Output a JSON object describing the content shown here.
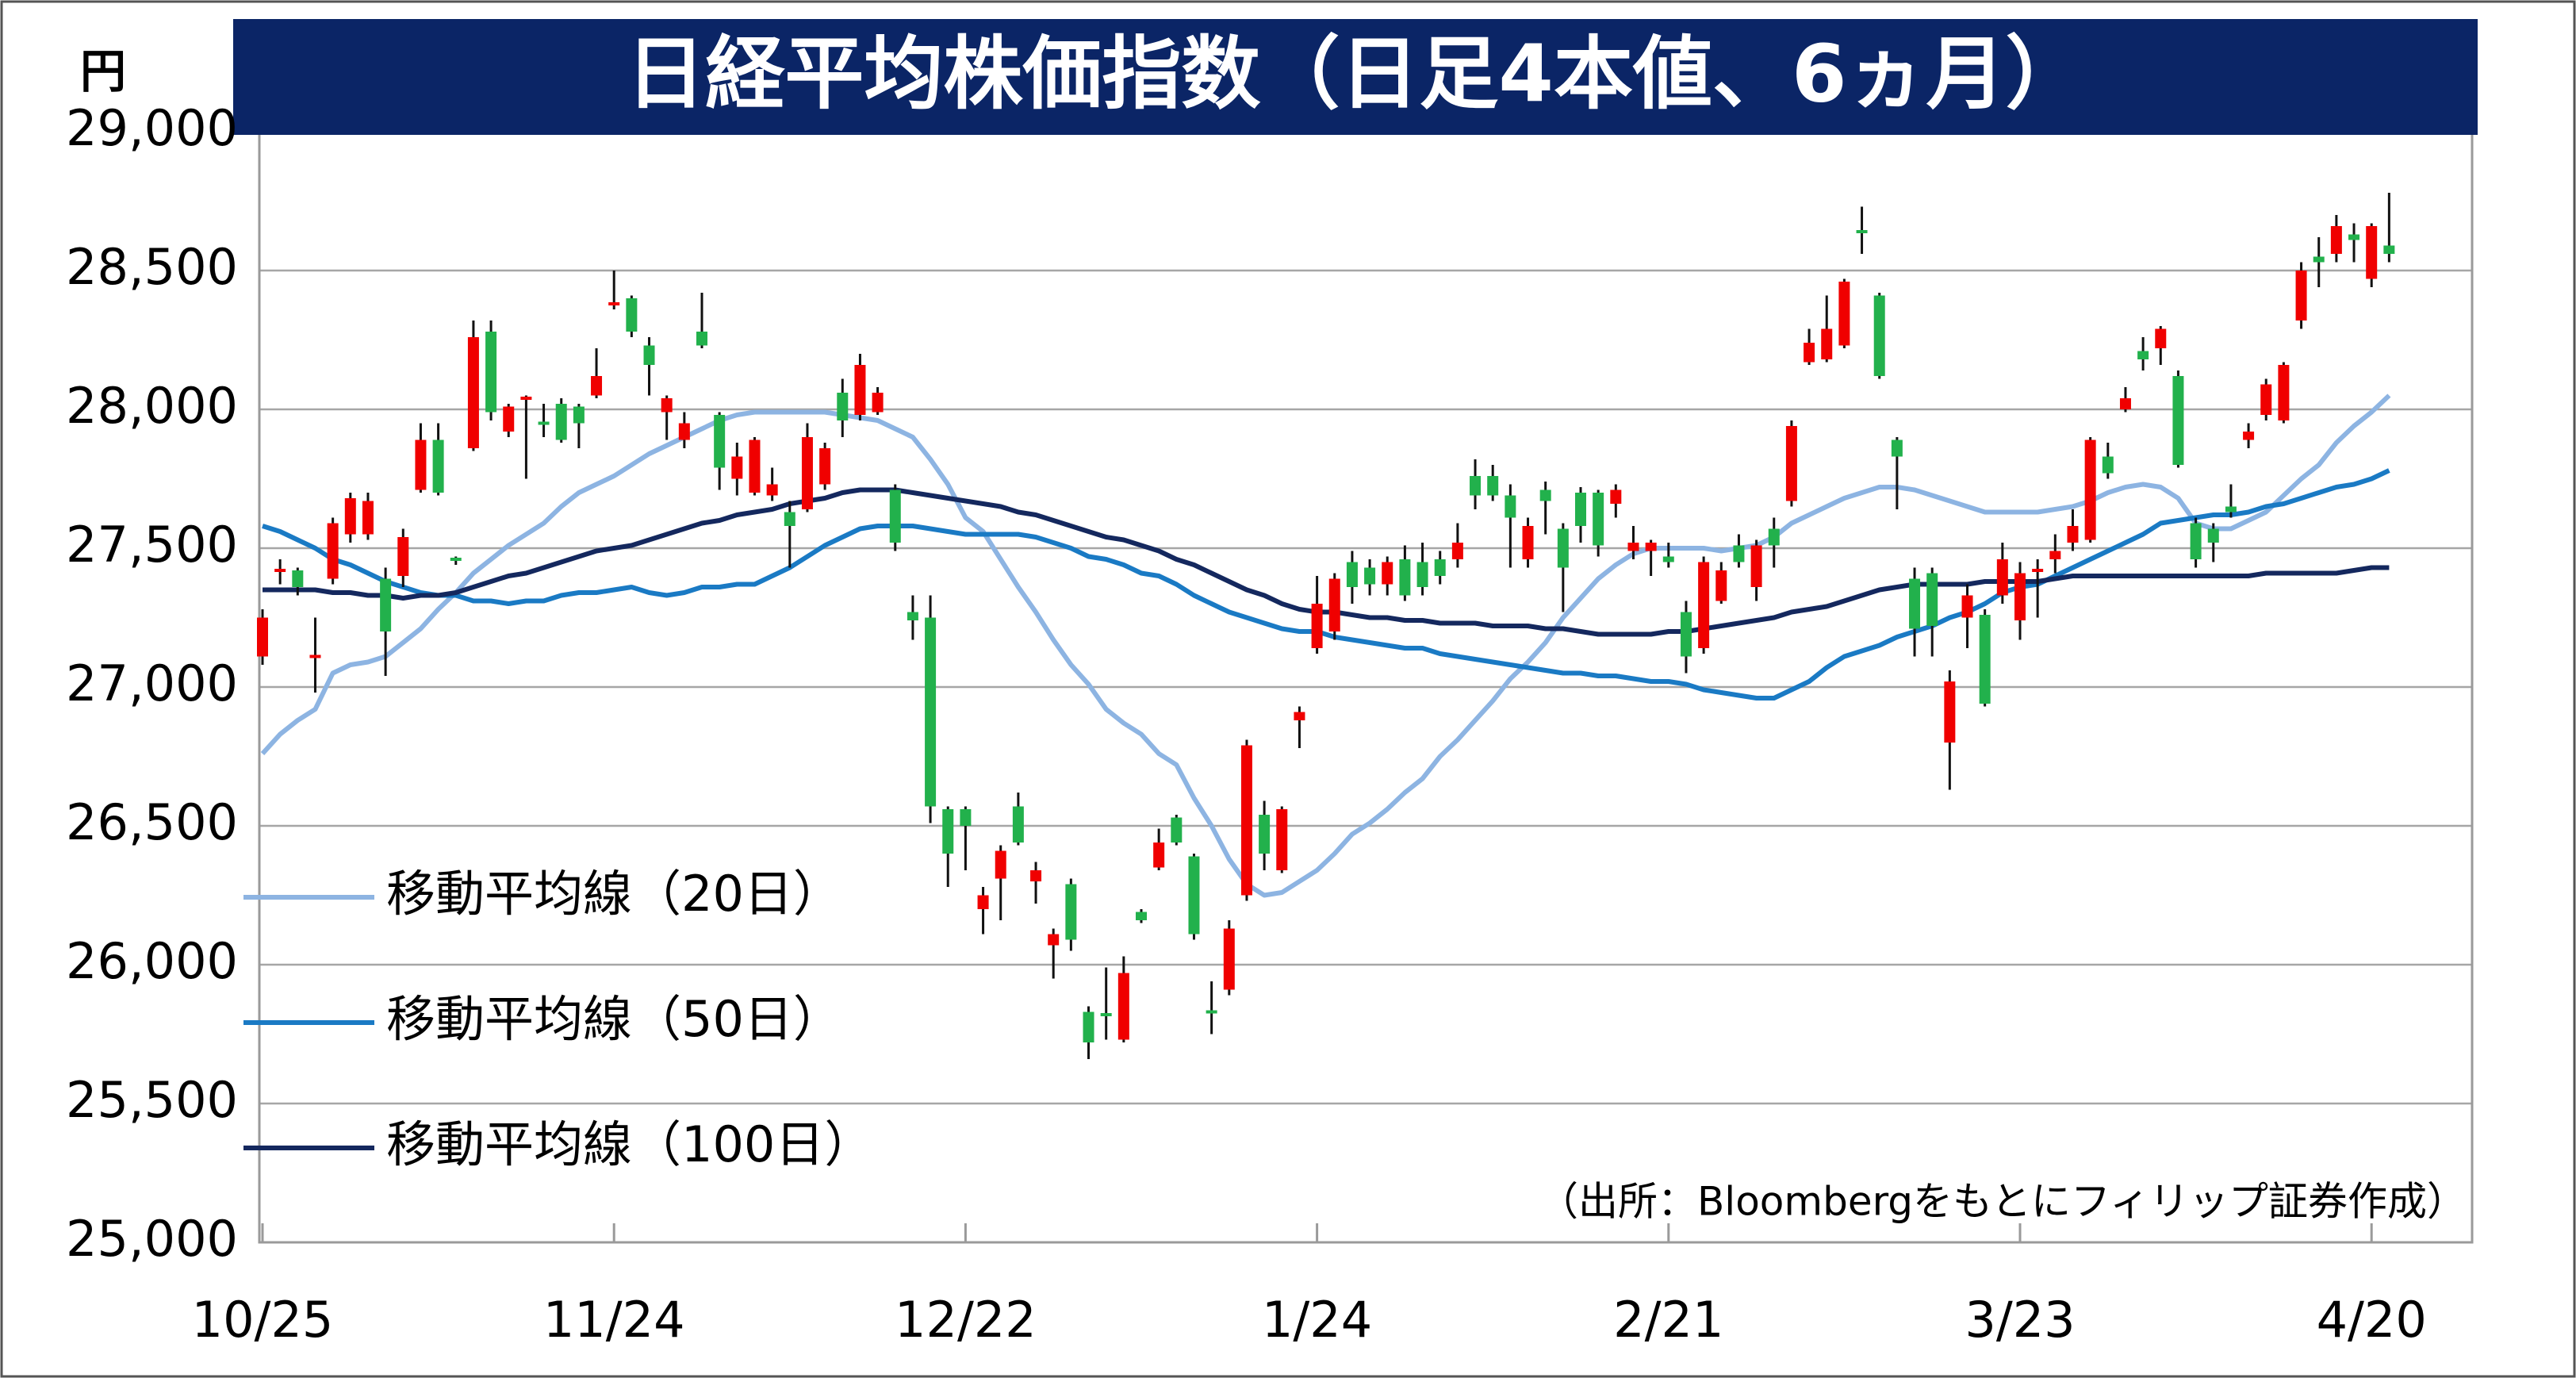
{
  "chart_data": {
    "type": "candlestick",
    "title": "日経平均株価指数（日足4本値、6ヵ月）",
    "y_unit": "円",
    "source": "（出所：Bloombergをもとにフィリップ証券作成）",
    "categories": [
      "10/25",
      null,
      null,
      null,
      null,
      null,
      null,
      null,
      null,
      null,
      null,
      null,
      null,
      null,
      null,
      null,
      null,
      null,
      null,
      null,
      "11/24",
      null,
      null,
      null,
      null,
      null,
      null,
      null,
      null,
      null,
      null,
      null,
      null,
      null,
      null,
      null,
      null,
      null,
      null,
      null,
      "12/22",
      null,
      null,
      null,
      null,
      null,
      null,
      null,
      null,
      null,
      null,
      null,
      null,
      null,
      null,
      null,
      null,
      null,
      null,
      null,
      "1/24",
      null,
      null,
      null,
      null,
      null,
      null,
      null,
      null,
      null,
      null,
      null,
      null,
      null,
      null,
      null,
      null,
      null,
      null,
      null,
      "2/21",
      null,
      null,
      null,
      null,
      null,
      null,
      null,
      null,
      null,
      null,
      null,
      null,
      null,
      null,
      null,
      null,
      null,
      null,
      null,
      "3/23",
      null,
      null,
      null,
      null,
      null,
      null,
      null,
      null,
      null,
      null,
      null,
      null,
      null,
      null,
      null,
      null,
      null,
      null,
      null,
      "4/20",
      null
    ],
    "open": [
      27110,
      27410,
      27420,
      27100,
      27390,
      27550,
      27550,
      27390,
      27400,
      27710,
      27890,
      27460,
      27860,
      28280,
      27920,
      28030,
      27950,
      28020,
      28010,
      28050,
      28370,
      28400,
      28230,
      27990,
      27890,
      28280,
      27980,
      27750,
      27700,
      27690,
      27630,
      27640,
      27730,
      28060,
      27980,
      27990,
      27710,
      27270,
      27250,
      26560,
      26560,
      26200,
      26310,
      26570,
      26300,
      26070,
      26290,
      25830,
      25820,
      25730,
      26190,
      26350,
      26530,
      26390,
      25830,
      25910,
      26250,
      26540,
      26340,
      26880,
      27140,
      27200,
      27450,
      27430,
      27370,
      27460,
      27450,
      27460,
      27460,
      27760,
      27760,
      27690,
      27460,
      27710,
      27570,
      27700,
      27700,
      27660,
      27490,
      27490,
      27470,
      27270,
      27140,
      27310,
      27510,
      27360,
      27570,
      27670,
      28170,
      28180,
      28230,
      28640,
      28410,
      27890,
      27390,
      27410,
      26800,
      27250,
      27260,
      27330,
      27240,
      27410,
      27460,
      27520,
      27530,
      27830,
      28000,
      28210,
      28220,
      28120,
      27590,
      27570,
      27650,
      27890,
      27980,
      27960,
      28320,
      28550,
      28560,
      28630,
      28470,
      28590
    ],
    "high": [
      27280,
      27460,
      27430,
      27250,
      27610,
      27700,
      27700,
      27430,
      27570,
      27950,
      27950,
      27470,
      28320,
      28320,
      28020,
      28050,
      28020,
      28040,
      28020,
      28220,
      28500,
      28410,
      28260,
      28050,
      27990,
      28420,
      27990,
      27880,
      27900,
      27790,
      27670,
      27950,
      27880,
      28110,
      28200,
      28080,
      27730,
      27330,
      27330,
      26570,
      26570,
      26280,
      26430,
      26620,
      26370,
      26130,
      26310,
      25850,
      25990,
      26030,
      26200,
      26490,
      26540,
      26400,
      25940,
      26160,
      26810,
      26590,
      26570,
      26930,
      27400,
      27410,
      27490,
      27460,
      27470,
      27510,
      27520,
      27490,
      27590,
      27820,
      27800,
      27730,
      27610,
      27740,
      27590,
      27720,
      27710,
      27730,
      27580,
      27530,
      27520,
      27310,
      27470,
      27450,
      27550,
      27530,
      27610,
      27960,
      28290,
      28410,
      28470,
      28730,
      28420,
      27900,
      27430,
      27430,
      27060,
      27370,
      27280,
      27520,
      27450,
      27460,
      27550,
      27640,
      27900,
      27880,
      28080,
      28260,
      28300,
      28140,
      27610,
      27590,
      27730,
      27950,
      28110,
      28170,
      28530,
      28620,
      28700,
      28670,
      28670,
      28780
    ],
    "low": [
      27080,
      27370,
      27330,
      26980,
      27370,
      27520,
      27530,
      27040,
      27360,
      27700,
      27690,
      27440,
      27850,
      27960,
      27900,
      27750,
      27900,
      27880,
      27860,
      28040,
      28360,
      28260,
      28050,
      27890,
      27860,
      28220,
      27710,
      27690,
      27690,
      27670,
      27430,
      27630,
      27710,
      27900,
      27960,
      27980,
      27490,
      27170,
      26510,
      26280,
      26340,
      26110,
      26160,
      26430,
      26220,
      25950,
      26050,
      25660,
      25730,
      25720,
      26150,
      26340,
      26430,
      26090,
      25750,
      25890,
      26230,
      26340,
      26330,
      26780,
      27120,
      27170,
      27300,
      27330,
      27330,
      27310,
      27330,
      27370,
      27430,
      27640,
      27670,
      27430,
      27430,
      27550,
      27270,
      27520,
      27470,
      27610,
      27460,
      27400,
      27430,
      27050,
      27120,
      27300,
      27430,
      27310,
      27430,
      27650,
      28160,
      28170,
      28220,
      28560,
      28110,
      27640,
      27110,
      27110,
      26630,
      27140,
      26930,
      27300,
      27170,
      27250,
      27410,
      27490,
      27520,
      27750,
      27990,
      28140,
      28160,
      27790,
      27430,
      27450,
      27610,
      27860,
      27960,
      27950,
      28290,
      28440,
      28530,
      28530,
      28440,
      28530
    ],
    "close": [
      27250,
      27420,
      27360,
      27110,
      27590,
      27680,
      27670,
      27200,
      27540,
      27890,
      27700,
      27450,
      28260,
      27990,
      28010,
      28040,
      27940,
      27890,
      27950,
      28120,
      28380,
      28280,
      28160,
      28040,
      27950,
      28230,
      27790,
      27830,
      27890,
      27730,
      27580,
      27900,
      27860,
      27960,
      28160,
      28060,
      27520,
      27240,
      26570,
      26400,
      26500,
      26250,
      26410,
      26440,
      26340,
      26110,
      26090,
      25720,
      25810,
      25970,
      26160,
      26440,
      26440,
      26110,
      25820,
      26130,
      26790,
      26400,
      26560,
      26910,
      27300,
      27390,
      27360,
      27370,
      27450,
      27330,
      27360,
      27400,
      27520,
      27690,
      27690,
      27610,
      27580,
      27670,
      27430,
      27580,
      27510,
      27710,
      27520,
      27520,
      27450,
      27110,
      27450,
      27420,
      27450,
      27510,
      27510,
      27940,
      28240,
      28290,
      28460,
      28630,
      28120,
      27830,
      27210,
      27220,
      27020,
      27330,
      26940,
      27460,
      27410,
      27420,
      27490,
      27580,
      27890,
      27770,
      28040,
      28180,
      28290,
      27800,
      27460,
      27520,
      27630,
      27920,
      28090,
      28160,
      28500,
      28530,
      28660,
      28610,
      28660,
      28560
    ],
    "up_color": "#f00000",
    "down_color": "#22b14c",
    "series": [
      {
        "name": "移動平均線（20日）",
        "color": "#8db4e2",
        "values": [
          26760,
          26830,
          26880,
          26920,
          27050,
          27080,
          27090,
          27110,
          27160,
          27210,
          27280,
          27340,
          27410,
          27460,
          27510,
          27550,
          27590,
          27650,
          27700,
          27730,
          27760,
          27800,
          27840,
          27870,
          27900,
          27930,
          27960,
          27980,
          27990,
          27990,
          27990,
          27990,
          27990,
          27980,
          27970,
          27960,
          27930,
          27900,
          27820,
          27730,
          27610,
          27560,
          27460,
          27360,
          27270,
          27170,
          27080,
          27010,
          26920,
          26870,
          26830,
          26760,
          26720,
          26600,
          26500,
          26380,
          26290,
          26250,
          26260,
          26300,
          26340,
          26400,
          26470,
          26510,
          26560,
          26620,
          26670,
          26750,
          26810,
          26880,
          26950,
          27030,
          27090,
          27160,
          27250,
          27320,
          27390,
          27440,
          27480,
          27500,
          27500,
          27500,
          27500,
          27490,
          27500,
          27510,
          27540,
          27590,
          27620,
          27650,
          27680,
          27700,
          27720,
          27720,
          27710,
          27690,
          27670,
          27650,
          27630,
          27630,
          27630,
          27630,
          27640,
          27650,
          27670,
          27700,
          27720,
          27730,
          27720,
          27680,
          27590,
          27570,
          27570,
          27600,
          27630,
          27690,
          27750,
          27800,
          27880,
          27940,
          27990,
          28050
        ]
      },
      {
        "name": "移動平均線（50日）",
        "color": "#1a7ac4",
        "values": [
          27580,
          27560,
          27530,
          27500,
          27460,
          27440,
          27410,
          27380,
          27360,
          27340,
          27330,
          27330,
          27310,
          27310,
          27300,
          27310,
          27310,
          27330,
          27340,
          27340,
          27350,
          27360,
          27340,
          27330,
          27340,
          27360,
          27360,
          27370,
          27370,
          27400,
          27430,
          27470,
          27510,
          27540,
          27570,
          27580,
          27580,
          27580,
          27570,
          27560,
          27550,
          27550,
          27550,
          27550,
          27540,
          27520,
          27500,
          27470,
          27460,
          27440,
          27410,
          27400,
          27370,
          27330,
          27300,
          27270,
          27250,
          27230,
          27210,
          27200,
          27200,
          27180,
          27170,
          27160,
          27150,
          27140,
          27140,
          27120,
          27110,
          27100,
          27090,
          27080,
          27070,
          27060,
          27050,
          27050,
          27040,
          27040,
          27030,
          27020,
          27020,
          27010,
          26990,
          26980,
          26970,
          26960,
          26960,
          26990,
          27020,
          27070,
          27110,
          27130,
          27150,
          27180,
          27200,
          27220,
          27250,
          27270,
          27300,
          27340,
          27360,
          27370,
          27400,
          27430,
          27460,
          27490,
          27520,
          27550,
          27590,
          27600,
          27610,
          27620,
          27620,
          27630,
          27650,
          27660,
          27680,
          27700,
          27720,
          27730,
          27750,
          27780
        ]
      },
      {
        "name": "移動平均線（100日）",
        "color": "#14285e",
        "values": [
          27350,
          27350,
          27350,
          27350,
          27340,
          27340,
          27330,
          27330,
          27320,
          27330,
          27330,
          27340,
          27360,
          27380,
          27400,
          27410,
          27430,
          27450,
          27470,
          27490,
          27500,
          27510,
          27530,
          27550,
          27570,
          27590,
          27600,
          27620,
          27630,
          27640,
          27660,
          27670,
          27680,
          27700,
          27710,
          27710,
          27710,
          27700,
          27690,
          27680,
          27670,
          27660,
          27650,
          27630,
          27620,
          27600,
          27580,
          27560,
          27540,
          27530,
          27510,
          27490,
          27460,
          27440,
          27410,
          27380,
          27350,
          27330,
          27300,
          27280,
          27270,
          27270,
          27260,
          27250,
          27250,
          27240,
          27240,
          27230,
          27230,
          27230,
          27220,
          27220,
          27220,
          27210,
          27210,
          27200,
          27190,
          27190,
          27190,
          27190,
          27200,
          27200,
          27210,
          27220,
          27230,
          27240,
          27250,
          27270,
          27280,
          27290,
          27310,
          27330,
          27350,
          27360,
          27370,
          27370,
          27370,
          27370,
          27380,
          27380,
          27380,
          27380,
          27390,
          27400,
          27400,
          27400,
          27400,
          27400,
          27400,
          27400,
          27400,
          27400,
          27400,
          27400,
          27410,
          27410,
          27410,
          27410,
          27410,
          27420,
          27430,
          27430
        ]
      }
    ],
    "ylim": [
      25000,
      29000
    ],
    "yticks": [
      {
        "value": 25000,
        "label": "25,000"
      },
      {
        "value": 25500,
        "label": "25,500"
      },
      {
        "value": 26000,
        "label": "26,000"
      },
      {
        "value": 26500,
        "label": "26,500"
      },
      {
        "value": 27000,
        "label": "27,000"
      },
      {
        "value": 27500,
        "label": "27,500"
      },
      {
        "value": 28000,
        "label": "28,000"
      },
      {
        "value": 28500,
        "label": "28,500"
      },
      {
        "value": 29000,
        "label": "29,000"
      }
    ],
    "grid": true
  }
}
